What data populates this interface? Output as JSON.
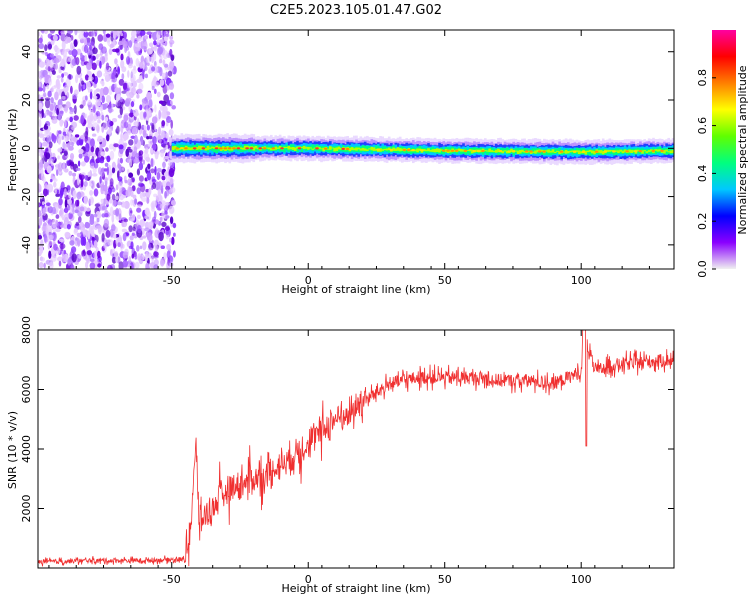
{
  "title": "C2E5.2023.105.01.47.G02",
  "chart_data": [
    {
      "type": "heatmap",
      "xlabel": "Height of straight line (km)",
      "ylabel": "Frequency (Hz)",
      "xlim": [
        -99,
        134
      ],
      "ylim": [
        -50,
        49
      ],
      "xticks": [
        -50,
        0,
        50,
        100
      ],
      "yticks": [
        -40,
        -20,
        0,
        20,
        40
      ],
      "colorbar": {
        "label": "Normalized spectral amplitude",
        "range": [
          0,
          1
        ],
        "ticks": [
          "0.0",
          "0.2",
          "0.4",
          "0.6",
          "0.8"
        ],
        "colors": [
          "#f0f0f0",
          "#8a00ff",
          "#0000ff",
          "#00c8ff",
          "#00ff7f",
          "#60ff00",
          "#ffff00",
          "#ff7f00",
          "#ff0000",
          "#ff00a0"
        ]
      },
      "noise_region_x": [
        -99,
        -49
      ],
      "signal_band": [
        {
          "x": -50,
          "freq": 0.0
        },
        {
          "x": -25,
          "freq": 0.0
        },
        {
          "x": 0,
          "freq": 0.0
        },
        {
          "x": 50,
          "freq": -1.0
        },
        {
          "x": 100,
          "freq": -1.5
        },
        {
          "x": 134,
          "freq": -1.0
        }
      ]
    },
    {
      "type": "line",
      "xlabel": "Height of straight line (km)",
      "ylabel": "SNR (10 * v/v)",
      "xlim": [
        -99,
        134
      ],
      "ylim": [
        0,
        8000
      ],
      "xticks": [
        -50,
        0,
        50,
        100
      ],
      "yticks": [
        2000,
        4000,
        6000,
        8000
      ],
      "color": "#f03030",
      "series": [
        {
          "x": [
            -99,
            -80,
            -60,
            -45,
            -43,
            -41,
            -40,
            -38,
            -35,
            -30,
            -25,
            -20,
            -15,
            -10,
            -5,
            0,
            5,
            10,
            15,
            20,
            25,
            30,
            40,
            50,
            60,
            70,
            80,
            90,
            95,
            100,
            101,
            105,
            110,
            120,
            134
          ],
          "y": [
            200,
            250,
            250,
            300,
            1500,
            4300,
            1400,
            1800,
            2000,
            2600,
            2800,
            3000,
            3100,
            3500,
            3800,
            4200,
            4600,
            5000,
            5200,
            5600,
            5900,
            6200,
            6400,
            6400,
            6400,
            6300,
            6300,
            6200,
            6400,
            6600,
            8000,
            6600,
            6800,
            6900,
            7000
          ]
        }
      ]
    }
  ]
}
